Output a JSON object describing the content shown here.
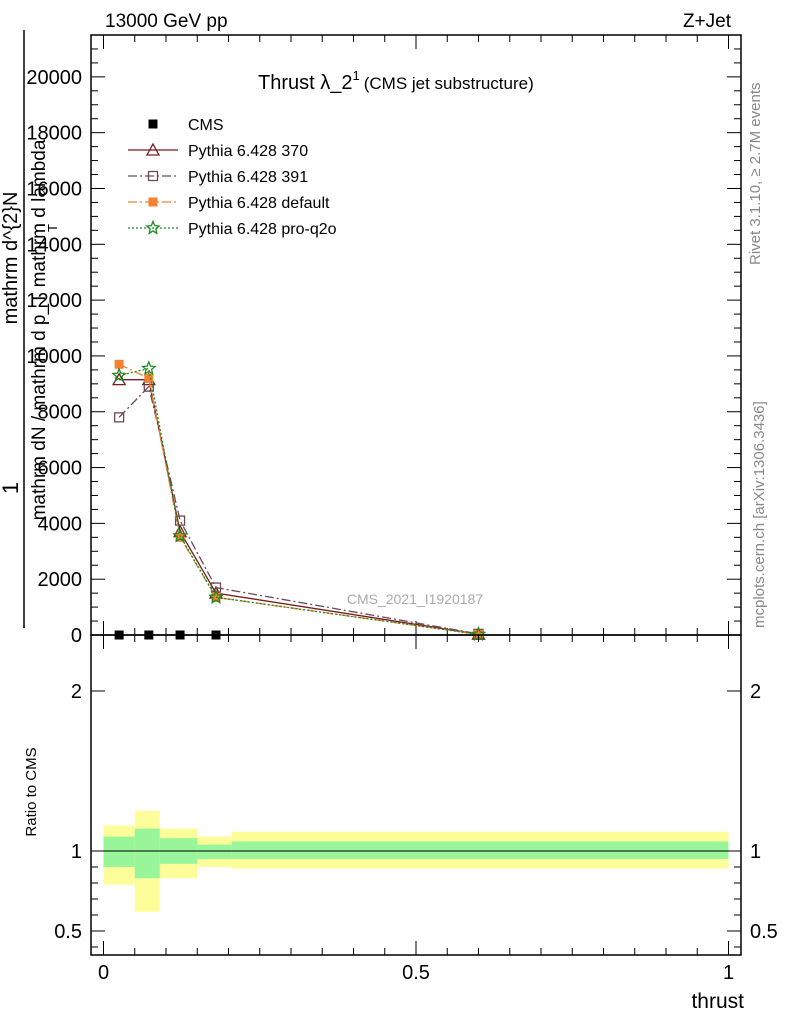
{
  "header": {
    "left_label": "13000 GeV pp",
    "right_label": "Z+Jet"
  },
  "side_labels": {
    "rivet": "Rivet 3.1.10, ≥ 2.7M events",
    "mcplots": "mcplots.cern.ch [arXiv:1306.3436]"
  },
  "analysis_id": "CMS_2021_I1920187",
  "chart_data": [
    {
      "type": "line",
      "panel": "main",
      "title": "Thrust λ_2",
      "title_superscript": "1",
      "subtitle": "(CMS jet substructure)",
      "ylabel_numerator": "1",
      "ylabel_denominator_top": "mathrm d^{2}N",
      "ylabel_line2": "mathrm dN / mathrm d p_T  mathrm d lambda",
      "ylabel_subscript": "T",
      "xlim": [
        -0.02,
        1.02
      ],
      "ylim": [
        0,
        21500
      ],
      "yticks": [
        0,
        2000,
        4000,
        6000,
        8000,
        10000,
        12000,
        14000,
        16000,
        18000,
        20000
      ],
      "ytick_labels": [
        "0",
        "2000",
        "4000",
        "6000",
        "8000",
        "10000",
        "12000",
        "14000",
        "16000",
        "18000",
        "20000"
      ],
      "legend_position": "top-left",
      "series": [
        {
          "name": "CMS",
          "color": "#000000",
          "marker": "filled-square",
          "x": [
            0.025,
            0.0725,
            0.1225,
            0.18
          ],
          "y": [
            0,
            0,
            0,
            0
          ]
        },
        {
          "name": "Pythia 6.428 370",
          "color": "#7a1b22",
          "marker": "open-triangle",
          "line": "solid",
          "x": [
            0.025,
            0.0725,
            0.1225,
            0.18,
            0.6
          ],
          "y": [
            9150,
            9150,
            3700,
            1500,
            30
          ]
        },
        {
          "name": "Pythia 6.428 391",
          "color": "#6b4a55",
          "marker": "open-square",
          "line": "dash-dot",
          "x": [
            0.025,
            0.0725,
            0.1225,
            0.18,
            0.6
          ],
          "y": [
            7800,
            8900,
            4100,
            1700,
            40
          ]
        },
        {
          "name": "Pythia 6.428 default",
          "color": "#f58230",
          "marker": "filled-square",
          "line": "dash-dot",
          "x": [
            0.025,
            0.0725,
            0.1225,
            0.18,
            0.6
          ],
          "y": [
            9700,
            9200,
            3500,
            1350,
            25
          ]
        },
        {
          "name": "Pythia 6.428 pro-q2o",
          "color": "#1f8a1f",
          "marker": "open-star",
          "line": "dotted",
          "x": [
            0.025,
            0.0725,
            0.1225,
            0.18,
            0.6
          ],
          "y": [
            9300,
            9550,
            3550,
            1350,
            20
          ]
        }
      ]
    },
    {
      "type": "area",
      "panel": "ratio",
      "ylabel": "Ratio to CMS",
      "xlabel": "thrust",
      "xlim": [
        -0.02,
        1.02
      ],
      "ylim": [
        0.35,
        2.35
      ],
      "yticks": [
        0.5,
        1,
        2
      ],
      "ytick_labels": [
        "0.5",
        "1",
        "2"
      ],
      "xticks": [
        0,
        0.5,
        1
      ],
      "xtick_labels": [
        "0",
        "0.5",
        "1"
      ],
      "reference_line": 1,
      "bins": [
        {
          "x_low": 0.0,
          "x_high": 0.05,
          "inner_low": 0.9,
          "inner_high": 1.09,
          "outer_low": 0.79,
          "outer_high": 1.16
        },
        {
          "x_low": 0.05,
          "x_high": 0.09,
          "inner_low": 0.83,
          "inner_high": 1.14,
          "outer_low": 0.62,
          "outer_high": 1.25
        },
        {
          "x_low": 0.09,
          "x_high": 0.15,
          "inner_low": 0.92,
          "inner_high": 1.08,
          "outer_low": 0.83,
          "outer_high": 1.14
        },
        {
          "x_low": 0.15,
          "x_high": 0.205,
          "inner_low": 0.95,
          "inner_high": 1.04,
          "outer_low": 0.9,
          "outer_high": 1.09
        },
        {
          "x_low": 0.205,
          "x_high": 1.0,
          "inner_low": 0.95,
          "inner_high": 1.06,
          "outer_low": 0.89,
          "outer_high": 1.12
        }
      ],
      "band_colors": {
        "inner": "#99f599",
        "outer": "#fdfd99"
      }
    }
  ]
}
